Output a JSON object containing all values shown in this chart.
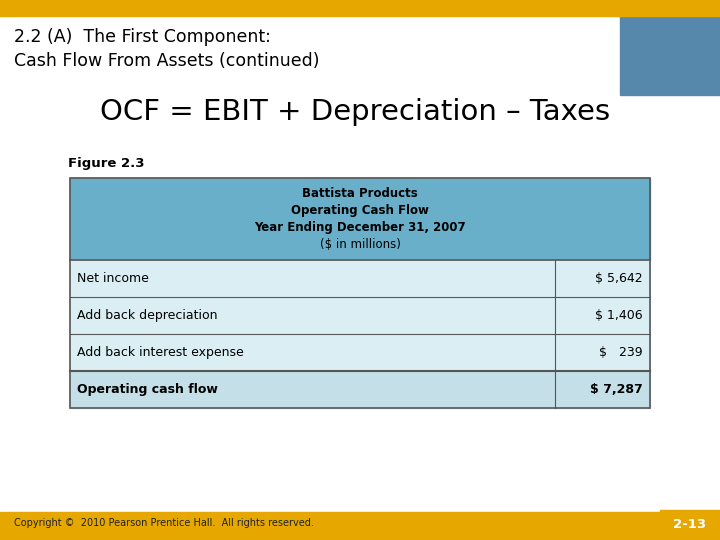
{
  "title_line1": "2.2 (A)  The First Component:",
  "title_line2": "Cash Flow From Assets (continued)",
  "formula": "OCF = EBIT + Depreciation – Taxes",
  "figure_label": "Figure 2.3",
  "table_header_lines": [
    "Battista Products",
    "Operating Cash Flow",
    "Year Ending December 31, 2007",
    "($ in millions)"
  ],
  "table_rows": [
    [
      "Net income",
      "$ 5,642"
    ],
    [
      "Add back depreciation",
      "$ 1,406"
    ],
    [
      "Add back interest expense",
      "$   239"
    ],
    [
      "Operating cash flow",
      "$ 7,287"
    ]
  ],
  "header_bg": "#6aafca",
  "row_bg_light": "#daeef3",
  "row_bg_last": "#c5dfe8",
  "table_border": "#555555",
  "gold_bar_color": "#e6a800",
  "gold_bottom_bg": "#e6a800",
  "slide_bg": "#ffffff",
  "title_color": "#000000",
  "formula_color": "#000000",
  "copyright_text": "Copyright ©  2010 Pearson Prentice Hall.  All rights reserved.",
  "page_label": "2-13",
  "page_label_color": "#ffffff",
  "page_bg": "#e6a800",
  "wrench_bg": "#5588aa",
  "title_fontsize": 12.5,
  "formula_fontsize": 21,
  "figure_label_fontsize": 9.5,
  "table_header_fontsize": 8.5,
  "table_row_fontsize": 9,
  "copyright_fontsize": 7
}
